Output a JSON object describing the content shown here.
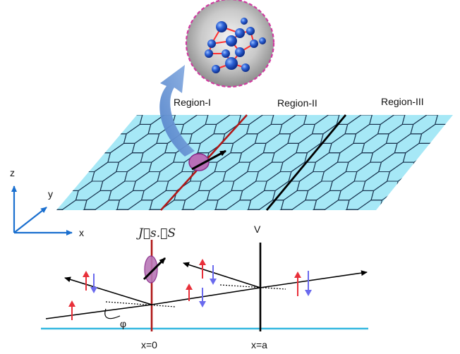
{
  "labels": {
    "region_1": "Region-I",
    "region_2": "Region-II",
    "region_3": "Region-III",
    "axis_z": "z",
    "axis_y": "y",
    "axis_x": "x",
    "exchange_term": "J⃗s.⃗S",
    "potential": "V",
    "angle": "φ",
    "interface_left": "x=0",
    "interface_right": "x=a"
  },
  "colors": {
    "sheet_fill": "#a6e8f6",
    "hex_stroke": "#1a3550",
    "interface_left": "#b01818",
    "interface_right": "#000000",
    "spin_up": "#e8303a",
    "spin_down": "#6a6aee",
    "substrate_line": "#35b8e0",
    "axes": "#1a6fcf",
    "molecule_shell_border": "#d03aa0",
    "molecule_atom": "#1d4fc8",
    "molecule_bond": "#ff3030",
    "curved_arrow": "#6f9ad6"
  },
  "icons": {
    "molecule": "magnetic-molecule-icon",
    "impurity": "impurity-spin-icon"
  }
}
